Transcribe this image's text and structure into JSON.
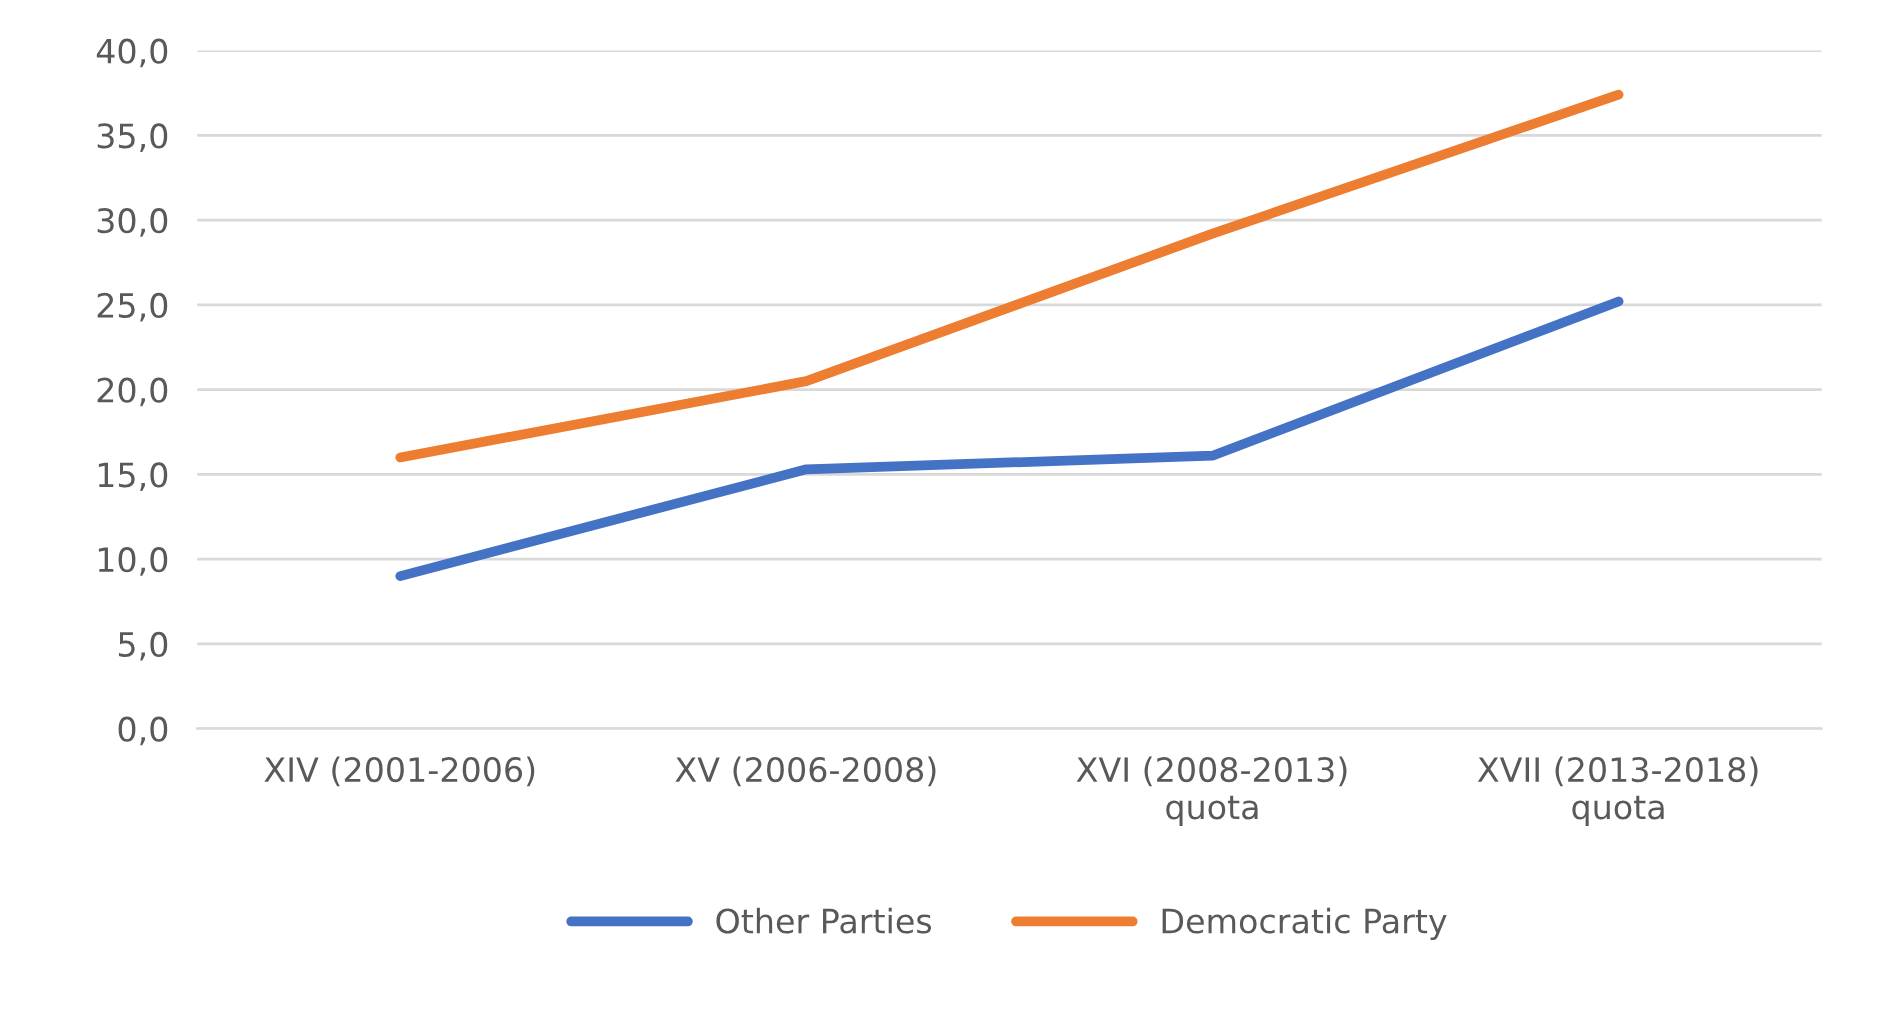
{
  "chart_data": {
    "type": "line",
    "categories": [
      "XIV (2001-2006)",
      "XV (2006-2008)",
      "XVI (2008-2013)\nquota",
      "XVII (2013-2018)\nquota"
    ],
    "series": [
      {
        "name": "Other Parties",
        "color": "#4472c4",
        "values": [
          9.0,
          15.3,
          16.1,
          25.2
        ]
      },
      {
        "name": "Democratic Party",
        "color": "#ed7d31",
        "values": [
          16.0,
          20.5,
          29.2,
          37.4
        ]
      }
    ],
    "ylim": [
      0,
      40
    ],
    "yticks": [
      {
        "value": 0,
        "label": "0,0"
      },
      {
        "value": 5,
        "label": "5,0"
      },
      {
        "value": 10,
        "label": "10,0"
      },
      {
        "value": 15,
        "label": "15,0"
      },
      {
        "value": 20,
        "label": "20,0"
      },
      {
        "value": 25,
        "label": "25,0"
      },
      {
        "value": 30,
        "label": "30,0"
      },
      {
        "value": 35,
        "label": "35,0"
      },
      {
        "value": 40,
        "label": "40,0"
      }
    ],
    "grid": "y",
    "legend": "bottom",
    "marker": "none",
    "line_style": "solid"
  }
}
